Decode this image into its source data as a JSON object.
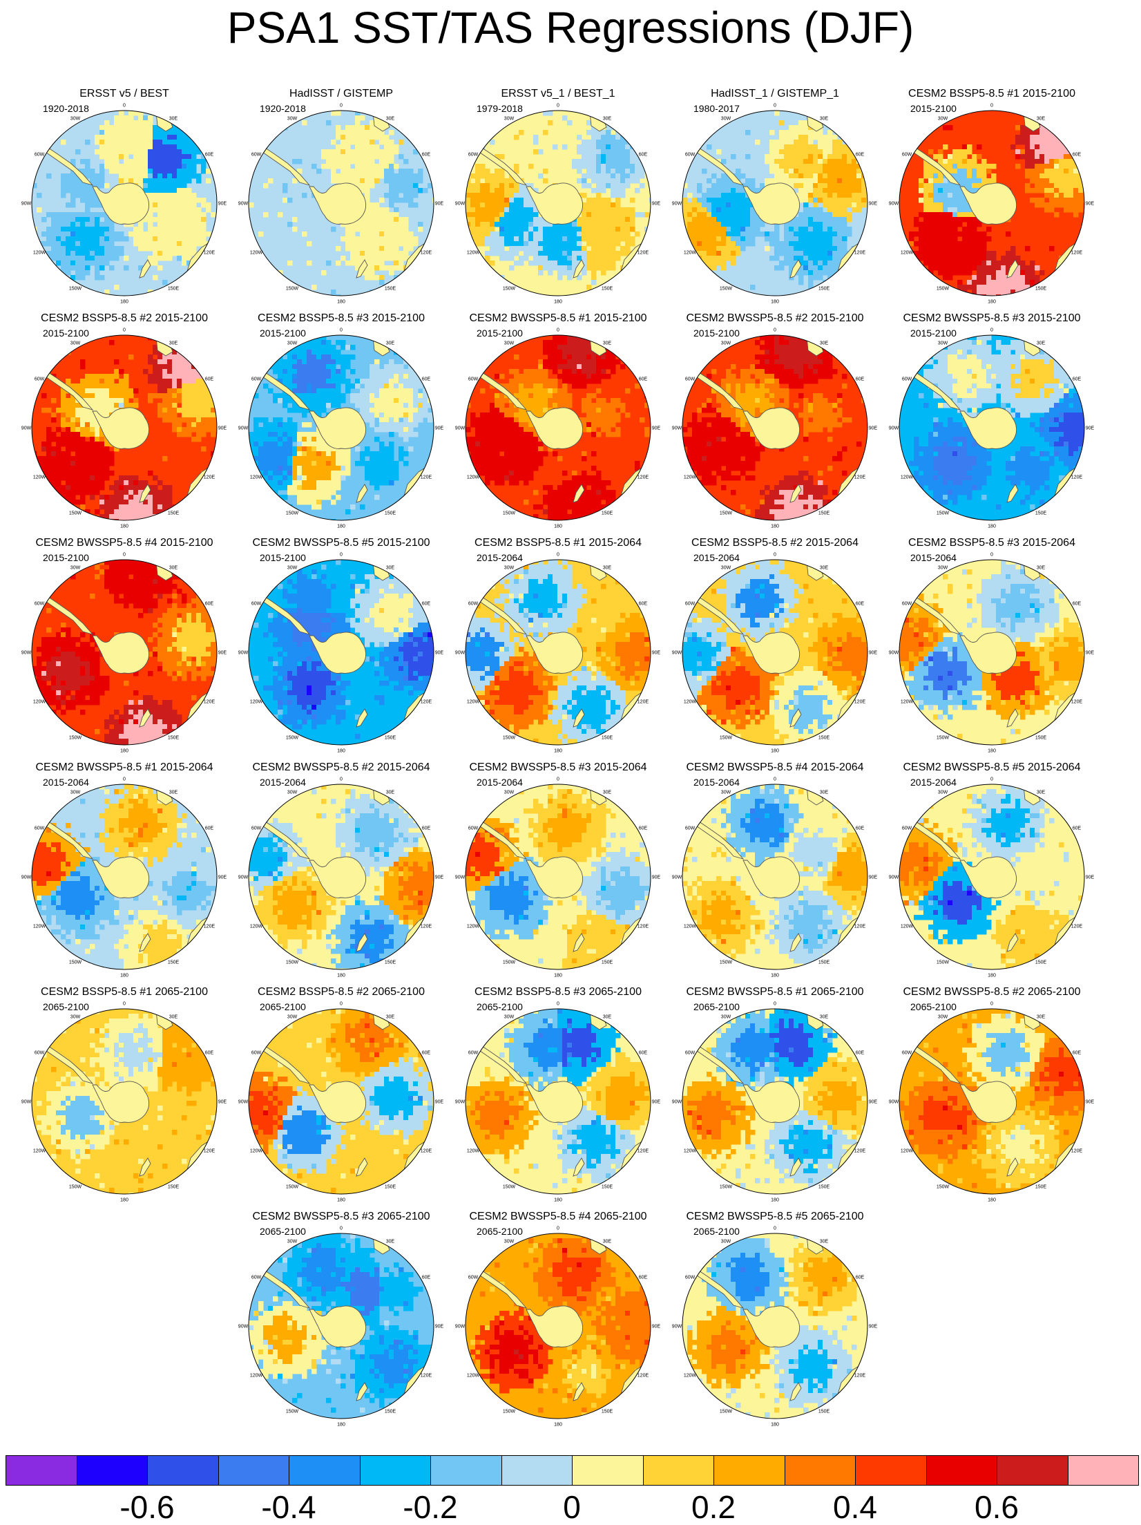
{
  "title": "PSA1 SST/TAS Regressions (DJF)",
  "colors": {
    "land": "#fdf59a",
    "coast": "#555555",
    "scale": [
      "#8a2be2",
      "#1e00ff",
      "#3050ea",
      "#3b7df0",
      "#1e8ff5",
      "#00b8f5",
      "#72c6f3",
      "#b3dcf3",
      "#fdf59a",
      "#ffd335",
      "#ffab00",
      "#ff7800",
      "#ff3a00",
      "#e80000",
      "#cc1c1c",
      "#ffb3b9"
    ]
  },
  "lon_labels": [
    "0",
    "30E",
    "60E",
    "90E",
    "120E",
    "150E",
    "180",
    "150W",
    "120W",
    "90W",
    "60W",
    "30W"
  ],
  "colorbar": {
    "ticks": [
      "-0.6",
      "-0.4",
      "-0.2",
      "0",
      "0.2",
      "0.4",
      "0.6"
    ]
  },
  "panels": [
    {
      "title": "ERSST v5 / BEST",
      "period": "1920-2018",
      "base": 7,
      "anoms": [
        [
          0.72,
          0.65,
          2
        ],
        [
          -2.3,
          0.6,
          5
        ],
        [
          0.2,
          0.55,
          8
        ],
        [
          2.0,
          0.55,
          8
        ],
        [
          -1.2,
          0.5,
          6
        ]
      ]
    },
    {
      "title": "HadISST / GISTEMP",
      "period": "1920-2018",
      "base": 7,
      "anoms": [
        [
          0.5,
          0.55,
          8
        ],
        [
          -2.2,
          0.6,
          7
        ],
        [
          2.3,
          0.55,
          8
        ],
        [
          1.3,
          0.7,
          6
        ]
      ]
    },
    {
      "title": "ERSST v5_1 / BEST_1",
      "period": "1979-2018",
      "base": 8,
      "anoms": [
        [
          -2.0,
          0.5,
          5
        ],
        [
          -1.6,
          0.75,
          10
        ],
        [
          3.0,
          0.4,
          5
        ],
        [
          0.9,
          0.8,
          6
        ],
        [
          2.2,
          0.55,
          9
        ]
      ]
    },
    {
      "title": "HadISST_1 / GISTEMP_1",
      "period": "1980-2017",
      "base": 7,
      "anoms": [
        [
          -1.8,
          0.5,
          5
        ],
        [
          -2.0,
          0.8,
          10
        ],
        [
          0.6,
          0.55,
          9
        ],
        [
          2.4,
          0.6,
          5
        ],
        [
          1.2,
          0.75,
          10
        ]
      ]
    },
    {
      "title": "CESM2 BSSP5-8.5 #1 2015-2100",
      "period": "2015-2100",
      "base": 12,
      "anoms": [
        [
          0.8,
          0.95,
          15
        ],
        [
          3.0,
          0.95,
          15
        ],
        [
          1.2,
          0.85,
          9
        ],
        [
          -2.3,
          0.6,
          13
        ],
        [
          -1.2,
          0.4,
          6
        ]
      ]
    },
    {
      "title": "CESM2 BSSP5-8.5 #2 2015-2100",
      "period": "2015-2100",
      "base": 12,
      "anoms": [
        [
          0.8,
          0.95,
          15
        ],
        [
          3.0,
          0.95,
          15
        ],
        [
          1.2,
          0.85,
          9
        ],
        [
          -2.2,
          0.65,
          13
        ],
        [
          -1.0,
          0.35,
          8
        ]
      ]
    },
    {
      "title": "CESM2 BSSP5-8.5 #3 2015-2100",
      "period": "2015-2100",
      "base": 6,
      "anoms": [
        [
          -2.5,
          0.5,
          10
        ],
        [
          -0.5,
          0.65,
          3
        ],
        [
          1.1,
          0.65,
          8
        ],
        [
          2.3,
          0.6,
          5
        ],
        [
          -2.0,
          0.8,
          4
        ]
      ]
    },
    {
      "title": "CESM2 BWSSP5-8.5 #1 2015-2100",
      "period": "2015-2100",
      "base": 12,
      "anoms": [
        [
          2.9,
          0.95,
          13
        ],
        [
          -1.9,
          0.6,
          13
        ],
        [
          0.3,
          0.85,
          14
        ],
        [
          1.3,
          0.5,
          11
        ],
        [
          -0.8,
          0.35,
          10
        ]
      ]
    },
    {
      "title": "CESM2 BWSSP5-8.5 #2 2015-2100",
      "period": "2015-2100",
      "base": 12,
      "anoms": [
        [
          2.9,
          0.95,
          15
        ],
        [
          -1.9,
          0.6,
          13
        ],
        [
          0.3,
          0.85,
          14
        ],
        [
          1.3,
          0.5,
          11
        ],
        [
          -0.8,
          0.35,
          10
        ]
      ]
    },
    {
      "title": "CESM2 BWSSP5-8.5 #3 2015-2100",
      "period": "2015-2100",
      "base": 5,
      "anoms": [
        [
          -2.3,
          0.55,
          3
        ],
        [
          1.6,
          0.9,
          2
        ],
        [
          -0.4,
          0.65,
          8
        ],
        [
          0.7,
          0.7,
          9
        ],
        [
          2.4,
          0.6,
          4
        ]
      ]
    },
    {
      "title": "CESM2 BWSSP5-8.5 #4 2015-2100",
      "period": "2015-2100",
      "base": 12,
      "anoms": [
        [
          -1.9,
          0.65,
          14
        ],
        [
          2.9,
          0.95,
          15
        ],
        [
          0.2,
          0.9,
          13
        ],
        [
          1.4,
          0.75,
          9
        ]
      ]
    },
    {
      "title": "CESM2 BWSSP5-8.5 #5 2015-2100",
      "period": "2015-2100",
      "base": 5,
      "anoms": [
        [
          -2.4,
          0.5,
          2
        ],
        [
          1.6,
          0.85,
          2
        ],
        [
          -0.5,
          0.7,
          4
        ],
        [
          0.9,
          0.7,
          8
        ],
        [
          -0.9,
          0.45,
          3
        ]
      ]
    },
    {
      "title": "CESM2 BSSP5-8.5 #1 2015-2064",
      "period": "2015-2064",
      "base": 9,
      "anoms": [
        [
          -2.3,
          0.6,
          12
        ],
        [
          -1.6,
          0.85,
          4
        ],
        [
          1.6,
          0.85,
          11
        ],
        [
          -0.3,
          0.6,
          5
        ],
        [
          2.6,
          0.7,
          5
        ]
      ]
    },
    {
      "title": "CESM2 BSSP5-8.5 #2 2015-2064",
      "period": "2015-2064",
      "base": 9,
      "anoms": [
        [
          -2.3,
          0.55,
          12
        ],
        [
          -1.6,
          0.85,
          5
        ],
        [
          1.6,
          0.85,
          11
        ],
        [
          -0.3,
          0.6,
          4
        ],
        [
          2.6,
          0.7,
          6
        ]
      ]
    },
    {
      "title": "CESM2 BSSP5-8.5 #3 2015-2064",
      "period": "2015-2064",
      "base": 8,
      "anoms": [
        [
          -2.0,
          0.55,
          3
        ],
        [
          -1.4,
          0.9,
          11
        ],
        [
          1.7,
          0.85,
          10
        ],
        [
          0.5,
          0.6,
          6
        ],
        [
          2.4,
          0.4,
          12
        ]
      ]
    },
    {
      "title": "CESM2 BWSSP5-8.5 #1 2015-2064",
      "period": "2015-2064",
      "base": 7,
      "anoms": [
        [
          -2.0,
          0.55,
          4
        ],
        [
          -1.4,
          0.85,
          12
        ],
        [
          0.3,
          0.6,
          10
        ],
        [
          1.8,
          0.7,
          6
        ],
        [
          2.7,
          0.85,
          9
        ]
      ]
    },
    {
      "title": "CESM2 BWSSP5-8.5 #2 2015-2064",
      "period": "2015-2064",
      "base": 8,
      "anoms": [
        [
          -2.1,
          0.6,
          10
        ],
        [
          -1.3,
          0.85,
          5
        ],
        [
          1.7,
          0.85,
          11
        ],
        [
          0.7,
          0.6,
          6
        ],
        [
          2.7,
          0.75,
          4
        ]
      ]
    },
    {
      "title": "CESM2 BWSSP5-8.5 #3 2015-2064",
      "period": "2015-2064",
      "base": 8,
      "anoms": [
        [
          -2.0,
          0.55,
          4
        ],
        [
          -1.3,
          0.85,
          12
        ],
        [
          0.2,
          0.55,
          10
        ],
        [
          1.8,
          0.7,
          6
        ],
        [
          2.6,
          0.9,
          9
        ]
      ]
    },
    {
      "title": "CESM2 BWSSP5-8.5 #4 2015-2064",
      "period": "2015-2064",
      "base": 8,
      "anoms": [
        [
          -0.2,
          0.6,
          4
        ],
        [
          -2.2,
          0.75,
          10
        ],
        [
          1.5,
          0.85,
          10
        ],
        [
          2.5,
          0.65,
          6
        ],
        [
          1.0,
          0.5,
          7
        ]
      ]
    },
    {
      "title": "CESM2 BWSSP5-8.5 #5 2015-2064",
      "period": "2015-2064",
      "base": 8,
      "anoms": [
        [
          -2.2,
          0.45,
          2
        ],
        [
          -1.4,
          0.85,
          11
        ],
        [
          0.3,
          0.6,
          5
        ],
        [
          1.7,
          0.65,
          8
        ],
        [
          2.5,
          0.8,
          9
        ]
      ]
    },
    {
      "title": "CESM2 BSSP5-8.5 #1 2065-2100",
      "period": "2065-2100",
      "base": 9,
      "anoms": [
        [
          0.9,
          0.85,
          10
        ],
        [
          2.6,
          0.5,
          9
        ],
        [
          -1.9,
          0.5,
          6
        ],
        [
          0.2,
          0.55,
          7
        ]
      ]
    },
    {
      "title": "CESM2 BSSP5-8.5 #2 2065-2100",
      "period": "2065-2100",
      "base": 9,
      "anoms": [
        [
          -2.3,
          0.5,
          4
        ],
        [
          -1.7,
          0.9,
          12
        ],
        [
          1.5,
          0.6,
          5
        ],
        [
          0.4,
          0.75,
          11
        ]
      ]
    },
    {
      "title": "CESM2 BSSP5-8.5 #3 2065-2100",
      "period": "2065-2100",
      "base": 8,
      "anoms": [
        [
          -0.2,
          0.6,
          4
        ],
        [
          -1.8,
          0.7,
          11
        ],
        [
          0.3,
          0.65,
          2
        ],
        [
          1.5,
          0.7,
          10
        ],
        [
          2.4,
          0.6,
          5
        ]
      ]
    },
    {
      "title": "CESM2 BWSSP5-8.5 #1 2065-2100",
      "period": "2065-2100",
      "base": 8,
      "anoms": [
        [
          -0.4,
          0.6,
          4
        ],
        [
          0.3,
          0.65,
          2
        ],
        [
          -1.8,
          0.7,
          11
        ],
        [
          1.5,
          0.7,
          10
        ],
        [
          2.5,
          0.6,
          5
        ]
      ]
    },
    {
      "title": "CESM2 BWSSP5-8.5 #2 2065-2100",
      "period": "2065-2100",
      "base": 10,
      "anoms": [
        [
          1.2,
          0.85,
          12
        ],
        [
          -1.9,
          0.55,
          12
        ],
        [
          0.3,
          0.55,
          6
        ],
        [
          2.6,
          0.6,
          8
        ]
      ]
    },
    {
      "title": "CESM2 BWSSP5-8.5 #3 2065-2100",
      "period": "2065-2100",
      "base": 6,
      "anoms": [
        [
          -0.3,
          0.65,
          4
        ],
        [
          1.0,
          0.7,
          5
        ],
        [
          2.2,
          0.7,
          4
        ],
        [
          -1.8,
          0.6,
          10
        ],
        [
          0.6,
          0.45,
          3
        ]
      ]
    },
    {
      "title": "CESM2 BWSSP5-8.5 #4 2065-2100",
      "period": "2065-2100",
      "base": 10,
      "anoms": [
        [
          -2.1,
          0.55,
          13
        ],
        [
          0.3,
          0.6,
          12
        ],
        [
          1.6,
          0.85,
          11
        ],
        [
          2.6,
          0.6,
          9
        ]
      ]
    },
    {
      "title": "CESM2 BWSSP5-8.5 #5 2065-2100",
      "period": "2065-2100",
      "base": 8,
      "anoms": [
        [
          -2.0,
          0.55,
          11
        ],
        [
          0.8,
          0.8,
          10
        ],
        [
          2.4,
          0.6,
          5
        ],
        [
          -0.5,
          0.6,
          4
        ]
      ]
    }
  ]
}
